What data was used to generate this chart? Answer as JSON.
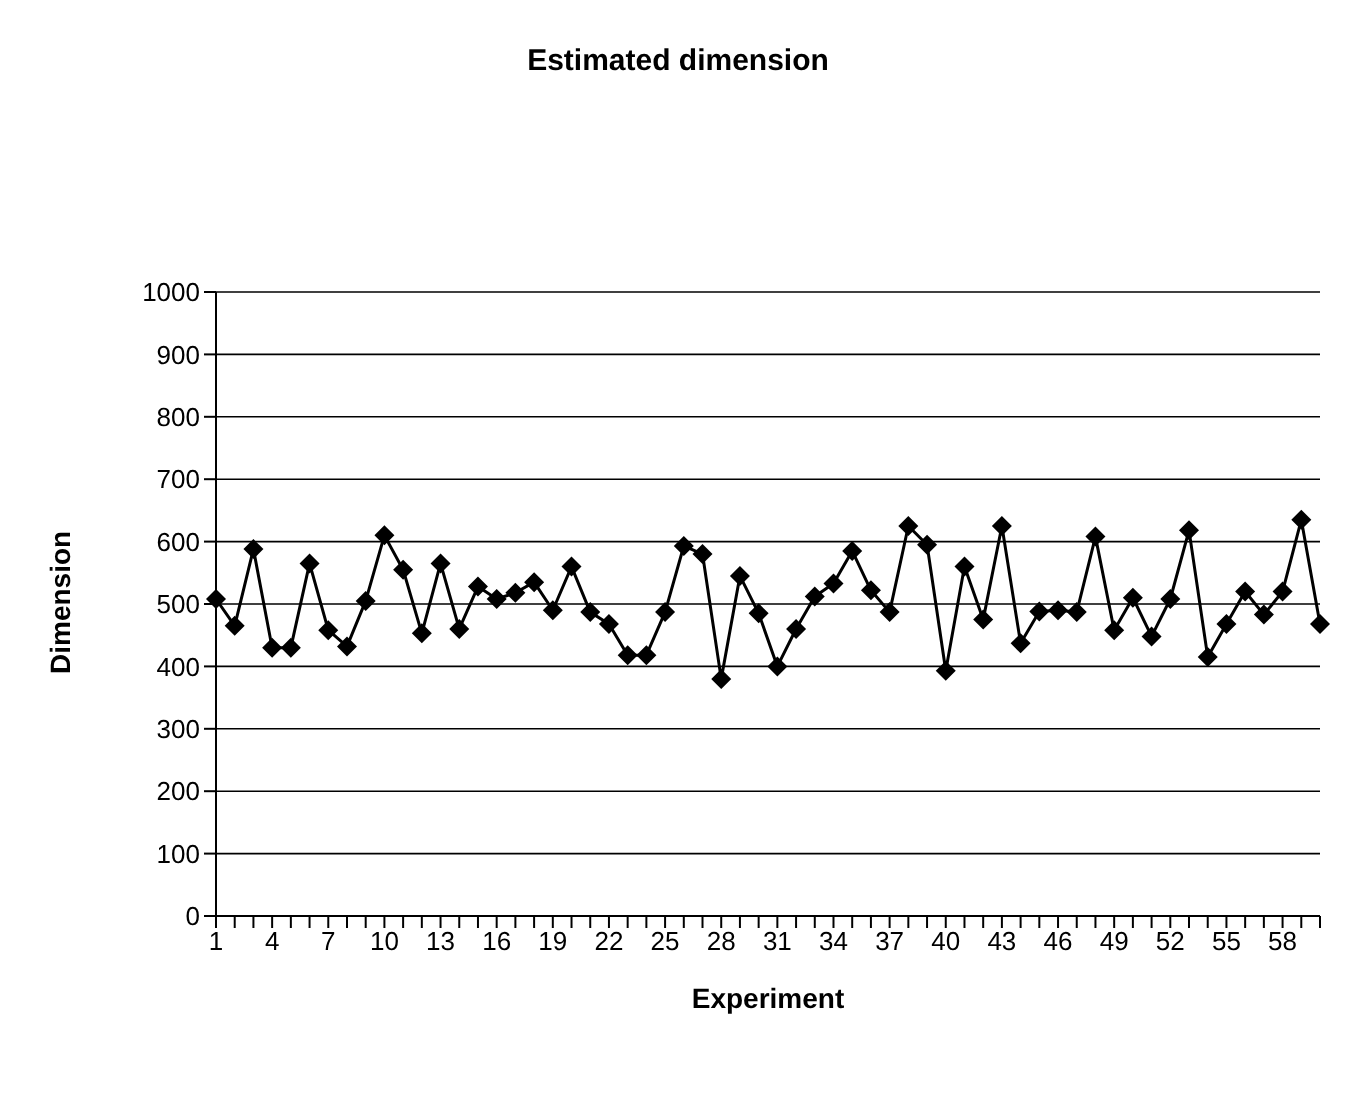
{
  "chart_data": {
    "type": "line",
    "title": "Estimated dimension",
    "xlabel": "Experiment",
    "ylabel": "Dimension",
    "categories": [
      "1",
      null,
      null,
      "4",
      null,
      null,
      "7",
      null,
      null,
      "10",
      null,
      null,
      "13",
      null,
      null,
      "16",
      null,
      null,
      "19",
      null,
      null,
      "22",
      null,
      null,
      "25",
      null,
      null,
      "28",
      null,
      null,
      "31",
      null,
      null,
      "34",
      null,
      null,
      "37",
      null,
      null,
      "40",
      null,
      null,
      "43",
      null,
      null,
      "46",
      null,
      null,
      "49",
      null,
      null,
      "52",
      null,
      null,
      "55",
      null,
      null,
      "58",
      null,
      null
    ],
    "series": [
      {
        "color": "#000000",
        "values": [
          508,
          465,
          588,
          430,
          430,
          565,
          458,
          432,
          505,
          610,
          555,
          453,
          565,
          460,
          528,
          508,
          518,
          535,
          490,
          560,
          487,
          468,
          418,
          418,
          487,
          593,
          580,
          380,
          545,
          485,
          400,
          460,
          512,
          533,
          585,
          522,
          487,
          625,
          595,
          393,
          560,
          475,
          625,
          437,
          488,
          490,
          487,
          608,
          458,
          510,
          448,
          508,
          618,
          415,
          468,
          520,
          483,
          520,
          635,
          468
        ]
      }
    ],
    "ylim": [
      0,
      1000
    ],
    "yticks": [
      0,
      100,
      200,
      300,
      400,
      500,
      600,
      700,
      800,
      900,
      1000
    ],
    "grid": "y",
    "legend": false,
    "marker": "diamond",
    "line_style": "solid"
  }
}
